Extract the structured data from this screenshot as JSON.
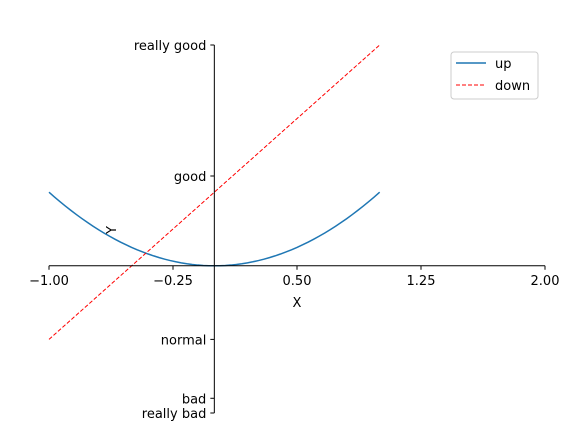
{
  "chart_data": {
    "type": "line",
    "xlabel": "X",
    "ylabel": "Y",
    "xlim": [
      -1,
      2
    ],
    "ylim": [
      -2,
      3
    ],
    "x_ticks": [
      {
        "value": -1.0,
        "label": "−1.00"
      },
      {
        "value": -0.25,
        "label": "−0.25"
      },
      {
        "value": 0.5,
        "label": "0.50"
      },
      {
        "value": 1.25,
        "label": "1.25"
      },
      {
        "value": 2.0,
        "label": "2.00"
      }
    ],
    "y_ticks": [
      {
        "value": -2,
        "label": "really bad"
      },
      {
        "value": -1.8,
        "label": "bad"
      },
      {
        "value": -1,
        "label": "normal"
      },
      {
        "value": 1.22,
        "label": "good"
      },
      {
        "value": 3,
        "label": "really good"
      }
    ],
    "series": [
      {
        "name": "up",
        "formula": "y = x^2",
        "x_range": [
          -1,
          1
        ],
        "x": [
          -1.0,
          -0.75,
          -0.5,
          -0.25,
          0.0,
          0.25,
          0.5,
          0.75,
          1.0
        ],
        "y": [
          1.0,
          0.5625,
          0.25,
          0.0625,
          0.0,
          0.0625,
          0.25,
          0.5625,
          1.0
        ],
        "color": "#1f77b4",
        "style": "solid"
      },
      {
        "name": "down",
        "formula": "y = 2x + 1",
        "x": [
          -1.0,
          1.0
        ],
        "y": [
          -1.0,
          3.0
        ],
        "color": "#ff0000",
        "style": "dashed"
      }
    ],
    "legend": {
      "position": "top-right"
    },
    "grid": false
  }
}
